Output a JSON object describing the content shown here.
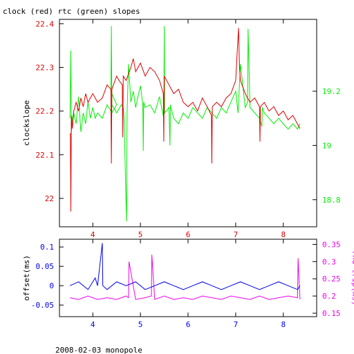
{
  "title": "clock (red) rtc (green) slopes",
  "footer": "2008-02-03 monopole",
  "colors": {
    "red": "#dd0000",
    "green": "#00ee00",
    "blue": "#0000ee",
    "magenta": "#ee00ee",
    "axis": "#000000"
  },
  "chart_data": [
    {
      "type": "line",
      "xlim": [
        3.3,
        8.7
      ],
      "x_ticks": [
        4,
        5,
        6,
        7,
        8
      ],
      "y_left": {
        "label": "clockslope",
        "lim": [
          21.935,
          22.41
        ],
        "ticks": [
          22,
          22.1,
          22.2,
          22.3,
          22.4
        ],
        "color": "red"
      },
      "y_right": {
        "label": "",
        "lim": [
          18.7,
          19.465
        ],
        "ticks": [
          18.8,
          19,
          19.2
        ],
        "color": "green"
      },
      "series": [
        {
          "color": "green",
          "axis": "right",
          "x": [
            3.52,
            3.54,
            3.55,
            3.57,
            3.6,
            3.65,
            3.7,
            3.75,
            3.8,
            3.85,
            3.9,
            3.95,
            4.0,
            4.05,
            4.1,
            4.2,
            4.3,
            4.4,
            4.5,
            4.38,
            4.39,
            4.4,
            4.5,
            4.6,
            4.64,
            4.65,
            4.66,
            4.7,
            4.71,
            4.72,
            4.75,
            4.8,
            4.85,
            4.9,
            5.0,
            5.05,
            5.06,
            5.07,
            5.1,
            5.2,
            5.3,
            5.4,
            5.49,
            5.5,
            5.51,
            5.6,
            5.62,
            5.63,
            5.64,
            5.7,
            5.8,
            5.9,
            6.0,
            6.1,
            6.2,
            6.3,
            6.4,
            6.5,
            6.6,
            6.7,
            6.8,
            6.9,
            7.0,
            7.05,
            7.1,
            7.2,
            7.25,
            7.26,
            7.3,
            7.4,
            7.5,
            7.55,
            7.56,
            7.6,
            7.7,
            7.8,
            7.9,
            8.0,
            8.1,
            8.2,
            8.3,
            8.35
          ],
          "y": [
            19.1,
            19.35,
            19.05,
            19.1,
            19.12,
            19.08,
            19.18,
            19.05,
            19.12,
            19.08,
            19.16,
            19.1,
            19.14,
            19.1,
            19.12,
            19.1,
            19.15,
            19.12,
            19.15,
            19.2,
            19.44,
            19.15,
            19.12,
            19.15,
            19.14,
            19.12,
            19.08,
            18.78,
            18.72,
            19.12,
            19.3,
            19.16,
            19.2,
            19.14,
            19.22,
            19.15,
            18.98,
            19.16,
            19.14,
            19.15,
            19.12,
            19.18,
            19.1,
            19.44,
            19.12,
            19.14,
            19.0,
            19.15,
            19.14,
            19.1,
            19.08,
            19.12,
            19.1,
            19.14,
            19.12,
            19.1,
            19.14,
            19.12,
            19.1,
            19.14,
            19.12,
            19.16,
            19.2,
            19.12,
            19.3,
            19.14,
            19.16,
            19.43,
            19.14,
            19.12,
            19.1,
            19.07,
            19.14,
            19.12,
            19.1,
            19.08,
            19.1,
            19.08,
            19.06,
            19.08,
            19.06,
            19.08
          ]
        },
        {
          "color": "red",
          "axis": "left",
          "x": [
            3.53,
            3.54,
            3.55,
            3.57,
            3.6,
            3.65,
            3.7,
            3.75,
            3.8,
            3.85,
            3.9,
            4.0,
            4.1,
            4.2,
            4.3,
            4.38,
            4.39,
            4.4,
            4.5,
            4.55,
            4.62,
            4.63,
            4.64,
            4.7,
            4.8,
            4.85,
            4.9,
            5.0,
            5.1,
            5.2,
            5.3,
            5.4,
            5.48,
            5.49,
            5.5,
            5.6,
            5.7,
            5.8,
            5.9,
            6.0,
            6.1,
            6.2,
            6.3,
            6.4,
            6.49,
            6.5,
            6.51,
            6.6,
            6.7,
            6.8,
            6.9,
            7.0,
            7.04,
            7.06,
            7.08,
            7.1,
            7.2,
            7.3,
            7.4,
            7.5,
            7.51,
            7.52,
            7.6,
            7.7,
            7.8,
            7.9,
            8.0,
            8.1,
            8.2,
            8.3,
            8.35
          ],
          "y": [
            22.15,
            21.97,
            22.19,
            22.16,
            22.2,
            22.22,
            22.2,
            22.23,
            22.21,
            22.24,
            22.22,
            22.24,
            22.22,
            22.23,
            22.26,
            22.25,
            22.08,
            22.25,
            22.28,
            22.27,
            22.26,
            22.14,
            22.28,
            22.27,
            22.3,
            22.32,
            22.29,
            22.31,
            22.28,
            22.3,
            22.29,
            22.27,
            22.24,
            22.13,
            22.28,
            22.26,
            22.24,
            22.25,
            22.22,
            22.21,
            22.22,
            22.2,
            22.23,
            22.21,
            22.19,
            22.08,
            22.21,
            22.22,
            22.21,
            22.23,
            22.24,
            22.27,
            22.35,
            22.39,
            22.3,
            22.27,
            22.24,
            22.22,
            22.23,
            22.21,
            22.13,
            22.21,
            22.22,
            22.2,
            22.21,
            22.19,
            22.2,
            22.18,
            22.19,
            22.17,
            22.16
          ]
        }
      ]
    },
    {
      "type": "line",
      "xlim": [
        3.3,
        8.7
      ],
      "x_ticks": [
        4,
        5,
        6,
        7,
        8
      ],
      "y_left": {
        "label": "offset(ms)",
        "lim": [
          -0.08,
          0.12
        ],
        "ticks": [
          -0.05,
          0,
          0.05,
          0.1
        ],
        "color": "blue"
      },
      "y_right": {
        "label": "rnd-trip(ms)",
        "lim": [
          0.14,
          0.365
        ],
        "ticks": [
          0.15,
          0.2,
          0.25,
          0.3,
          0.35
        ],
        "color": "magenta"
      },
      "series": [
        {
          "color": "magenta",
          "axis": "right",
          "x": [
            3.52,
            3.7,
            3.9,
            4.1,
            4.3,
            4.5,
            4.7,
            4.75,
            4.76,
            4.9,
            5.1,
            5.23,
            5.24,
            5.3,
            5.5,
            5.7,
            5.9,
            6.1,
            6.3,
            6.5,
            6.7,
            6.9,
            7.1,
            7.3,
            7.5,
            7.7,
            7.9,
            8.1,
            8.3,
            8.31,
            8.35
          ],
          "y": [
            0.195,
            0.19,
            0.2,
            0.19,
            0.195,
            0.19,
            0.2,
            0.195,
            0.3,
            0.19,
            0.195,
            0.2,
            0.32,
            0.19,
            0.2,
            0.19,
            0.195,
            0.19,
            0.2,
            0.195,
            0.19,
            0.2,
            0.195,
            0.19,
            0.2,
            0.19,
            0.195,
            0.2,
            0.195,
            0.31,
            0.19
          ]
        },
        {
          "color": "blue",
          "axis": "left",
          "x": [
            3.52,
            3.7,
            3.9,
            4.05,
            4.1,
            4.2,
            4.21,
            4.3,
            4.5,
            4.7,
            4.9,
            5.1,
            5.3,
            5.5,
            5.7,
            5.9,
            6.1,
            6.3,
            6.5,
            6.7,
            6.9,
            7.1,
            7.3,
            7.5,
            7.7,
            7.9,
            8.1,
            8.3,
            8.35
          ],
          "y": [
            0.0,
            0.01,
            -0.01,
            0.02,
            0.0,
            0.11,
            0.0,
            -0.01,
            0.01,
            0.0,
            0.01,
            -0.01,
            0.0,
            0.01,
            0.0,
            -0.01,
            0.0,
            0.01,
            0.0,
            -0.01,
            0.0,
            0.01,
            0.0,
            -0.01,
            0.0,
            0.01,
            0.0,
            -0.01,
            0.0
          ]
        }
      ]
    }
  ]
}
